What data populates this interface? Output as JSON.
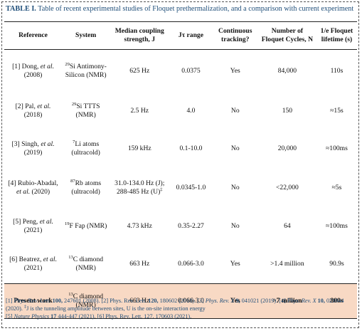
{
  "caption": {
    "label": "TABLE I.",
    "text": "Table of recent experimental studies of Floquet prethermalization, and a comparison with current experiment"
  },
  "headers": {
    "reference": "Reference",
    "system": "System",
    "coupling_line1": "Median coupling",
    "coupling_line2": "strength, J",
    "jt_range": "Jτ range",
    "tracking_line1": "Continuous",
    "tracking_line2": "tracking?",
    "cycles_line1": "Number of",
    "cycles_line2": "Floquet Cycles, N",
    "lifetime_line1": "1/e Floquet",
    "lifetime_line2": "lifetime (s)"
  },
  "rows": [
    {
      "ref_pre": "[1] Dong, ",
      "ref_etal": "et al.",
      "ref_post": " (2008)",
      "sys_sup": "29",
      "sys_main": "Si Antimony-Silicon (NMR)",
      "coupling": "625 Hz",
      "jt": "0.0375",
      "tracking": "Yes",
      "cycles": "84,000",
      "lifetime": "110s"
    },
    {
      "ref_pre": "[2] Pal, ",
      "ref_etal": "et al.",
      "ref_post": " (2018)",
      "sys_sup": "29",
      "sys_main": "Si TTTS (NMR)",
      "coupling": "2.5 Hz",
      "jt": "4.0",
      "tracking": "No",
      "cycles": "150",
      "lifetime": "≈15s"
    },
    {
      "ref_pre": "[3] Singh, ",
      "ref_etal": "et al.",
      "ref_post": " (2019)",
      "sys_sup": "7",
      "sys_main": "Li atoms (ultracold)",
      "coupling": "159 kHz",
      "jt": "0.1-10.0",
      "tracking": "No",
      "cycles": "20,000",
      "lifetime": "≈100ms"
    },
    {
      "ref_pre": "[4] Rubio-Abadal, ",
      "ref_etal": "et al.",
      "ref_post": " (2020)",
      "sys_sup": "87",
      "sys_main": "Rb atoms (ultracold)",
      "coupling": "31.0-134.0 Hz (J);",
      "coupling2": "288-485 Hz (U)",
      "coupling2_sup": "‡",
      "jt": "0.0345-1.0",
      "tracking": "No",
      "cycles": "<22,000",
      "lifetime": "≈5s"
    },
    {
      "ref_pre": "[5] Peng, ",
      "ref_etal": "et al.",
      "ref_post": " (2021)",
      "sys_sup": "19",
      "sys_main": "F Fap (NMR)",
      "coupling": "4.73 kHz",
      "jt": "0.35-2.27",
      "tracking": "No",
      "cycles": "64",
      "lifetime": "≈100ms"
    },
    {
      "ref_pre": "[6] Beatrez, ",
      "ref_etal": "et al.",
      "ref_post": " (2021)",
      "sys_sup": "13",
      "sys_main": "C diamond (NMR)",
      "coupling": "663 Hz",
      "jt": "0.066-3.0",
      "tracking": "Yes",
      "cycles": ">1.4 million",
      "lifetime": "90.9s"
    }
  ],
  "present": {
    "ref": "Present work",
    "sys_sup": "13",
    "sys_main": "C diamond (NMR)",
    "coupling": "663 Hz",
    "jt": "0.066-3.0",
    "tracking": "Yes",
    "cycles": ">7 million",
    "lifetime": "800s"
  },
  "references": {
    "r1_pre": "[1] Phys. Rev. Lett. ",
    "r1_vol": "100,",
    "r1_post": " 247601 (2008). [2] Phys. Rev. Lett. ",
    "r2_vol": "120,",
    "r2_post": " 180602 (2018). [3] ",
    "r3_journal": "Phys. Rev. X",
    "r3_vol": " 9,",
    "r3_post": " 041021 (2019). [4] ",
    "r4_journal": "Phys. Rev. X",
    "r4_vol": "10,",
    "r4_post": " 021044 (2020). ",
    "note_sup": "‡",
    "note": "J is the tunneling amplitude between sites, U is the on-site interaction energy",
    "r5_pre": "[5] ",
    "r5_journal": "Nature Physics",
    "r5_vol": " 17",
    "r5_post": " 444-447 (2021). [6] Phys. Rev. Lett. 127, 170603 (2021)."
  }
}
